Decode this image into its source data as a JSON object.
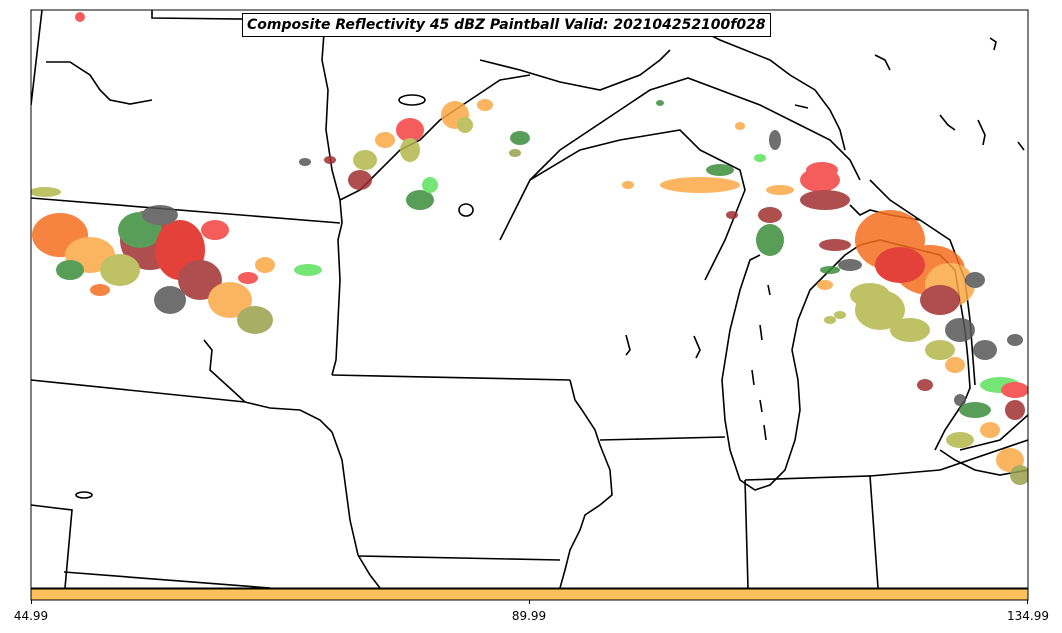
{
  "title": "Composite Reflectivity 45 dBZ Paintball Valid: 202104252100f028",
  "colorbar": {
    "color": "#fdc15c",
    "ticks": [
      "44.99",
      "89.99",
      "134.99"
    ]
  },
  "member_colors": [
    "#f44040",
    "#fba745",
    "#f56e1f",
    "#5ee25e",
    "#3b8e3b",
    "#9aa04a",
    "#b3b74a",
    "#a03030",
    "#565656",
    "#e0201a"
  ],
  "regions": [
    "Minnesota",
    "Wisconsin",
    "Michigan",
    "Iowa",
    "North Dakota",
    "South Dakota",
    "Illinois",
    "Indiana"
  ]
}
